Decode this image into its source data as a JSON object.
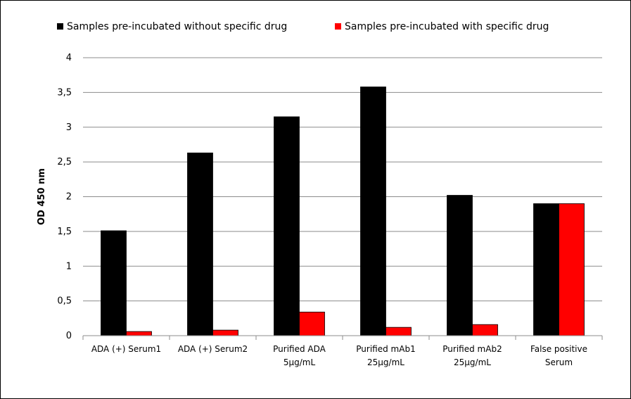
{
  "chart_data": {
    "type": "bar",
    "title": "",
    "xlabel": "",
    "ylabel": "OD 450 nm",
    "ylim": [
      0,
      4
    ],
    "yticks": [
      "0",
      "0,5",
      "1",
      "1,5",
      "2",
      "2,5",
      "3",
      "3,5",
      "4"
    ],
    "grid": true,
    "legend_position": "top",
    "categories": [
      [
        "ADA (+) Serum1"
      ],
      [
        "ADA (+) Serum2"
      ],
      [
        "Purified ADA",
        "5µg/mL"
      ],
      [
        "Purified mAb1",
        "25µg/mL"
      ],
      [
        "Purified mAb2",
        "25µg/mL"
      ],
      [
        "False positive",
        "Serum"
      ]
    ],
    "series": [
      {
        "name": "Samples pre-incubated without specific drug",
        "color": "#000000",
        "values": [
          1.51,
          2.63,
          3.15,
          3.58,
          2.02,
          1.9
        ]
      },
      {
        "name": "Samples pre-incubated with specific drug",
        "color": "#ff0000",
        "values": [
          0.06,
          0.08,
          0.34,
          0.12,
          0.16,
          1.9
        ]
      }
    ]
  }
}
